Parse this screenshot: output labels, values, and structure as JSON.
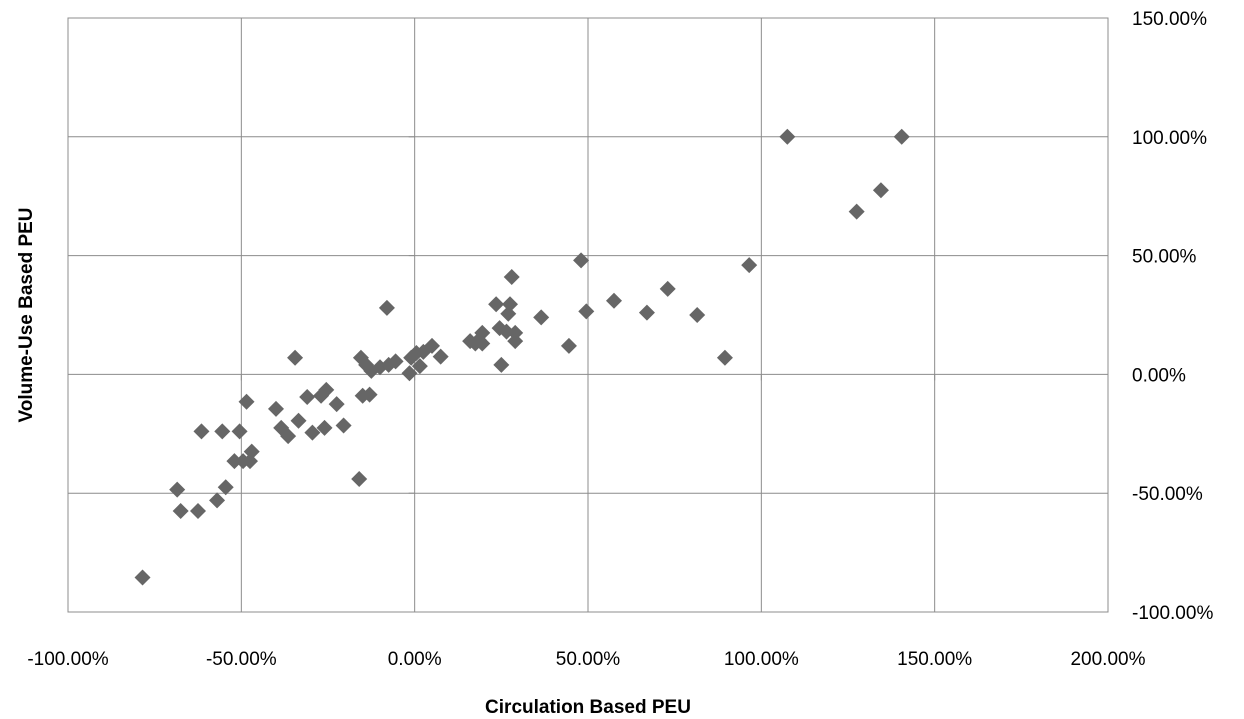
{
  "chart_data": {
    "type": "scatter",
    "title": "",
    "xlabel": "Circulation Based PEU",
    "ylabel": "Volume-Use Based PEU",
    "xlim": [
      -100,
      200
    ],
    "ylim": [
      -100,
      150
    ],
    "xticks": [
      -100,
      -50,
      0,
      50,
      100,
      150,
      200
    ],
    "yticks": [
      -100,
      -50,
      0,
      50,
      100,
      150
    ],
    "xtick_labels": [
      "-100.00%",
      "-50.00%",
      "0.00%",
      "50.00%",
      "100.00%",
      "150.00%",
      "200.00%"
    ],
    "ytick_labels": [
      "-100.00%",
      "-50.00%",
      "0.00%",
      "50.00%",
      "100.00%",
      "150.00%"
    ],
    "grid": true,
    "legend": "none",
    "marker": "diamond",
    "marker_color": "#666666",
    "series": [
      {
        "points": [
          [
            -78.5,
            -85.5
          ],
          [
            -68.5,
            -48.5
          ],
          [
            -67.5,
            -57.5
          ],
          [
            -62.5,
            -57.5
          ],
          [
            -57,
            -53
          ],
          [
            -61.5,
            -24
          ],
          [
            -55.5,
            -24
          ],
          [
            -54.5,
            -47.5
          ],
          [
            -50.5,
            -24
          ],
          [
            -52,
            -36.5
          ],
          [
            -49.5,
            -36.5
          ],
          [
            -47.5,
            -36.5
          ],
          [
            -47,
            -32.5
          ],
          [
            -48.5,
            -11.5
          ],
          [
            -40,
            -14.5
          ],
          [
            -38.5,
            -22.5
          ],
          [
            -36.5,
            -26
          ],
          [
            -34.5,
            7
          ],
          [
            -33.5,
            -19.5
          ],
          [
            -31,
            -9.5
          ],
          [
            -29.5,
            -24.5
          ],
          [
            -27,
            -9
          ],
          [
            -26,
            -22.5
          ],
          [
            -25.5,
            -6.5
          ],
          [
            -22.5,
            -12.5
          ],
          [
            -20.5,
            -21.5
          ],
          [
            -16,
            -44
          ],
          [
            -15.5,
            7
          ],
          [
            -15,
            -9
          ],
          [
            -14,
            4
          ],
          [
            -12.5,
            1.5
          ],
          [
            -13,
            -8.5
          ],
          [
            -10,
            3
          ],
          [
            -8,
            28
          ],
          [
            -7.5,
            4
          ],
          [
            -5.5,
            5.5
          ],
          [
            -1,
            7
          ],
          [
            -1.5,
            0.5
          ],
          [
            0.5,
            9
          ],
          [
            1.5,
            3.5
          ],
          [
            2.5,
            9.5
          ],
          [
            5,
            12
          ],
          [
            7.5,
            7.5
          ],
          [
            16,
            14
          ],
          [
            17.5,
            13
          ],
          [
            18.5,
            14.5
          ],
          [
            19.5,
            17.5
          ],
          [
            19.5,
            13
          ],
          [
            23.5,
            29.5
          ],
          [
            24.5,
            19.5
          ],
          [
            25,
            4
          ],
          [
            26.5,
            18
          ],
          [
            27.5,
            29.5
          ],
          [
            27,
            25.5
          ],
          [
            28,
            41
          ],
          [
            29,
            17.5
          ],
          [
            29,
            14
          ],
          [
            36.5,
            24
          ],
          [
            44.5,
            12
          ],
          [
            48,
            48
          ],
          [
            49.5,
            26.5
          ],
          [
            57.5,
            31
          ],
          [
            67,
            26
          ],
          [
            73,
            36
          ],
          [
            81.5,
            25
          ],
          [
            89.5,
            7
          ],
          [
            96.5,
            46
          ],
          [
            107.5,
            100
          ],
          [
            127.5,
            68.5
          ],
          [
            134.5,
            77.5
          ],
          [
            140.5,
            100
          ]
        ]
      }
    ]
  }
}
